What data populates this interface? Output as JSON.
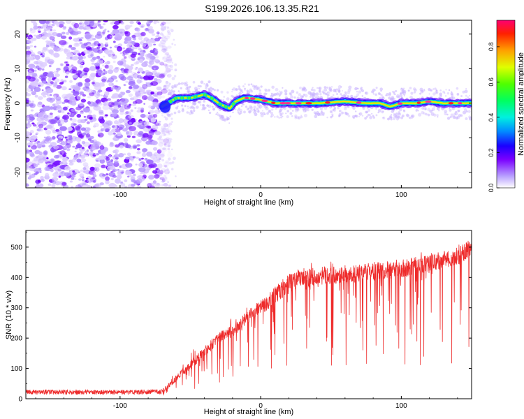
{
  "title": "S199.2026.106.13.35.R21",
  "chart_data": [
    {
      "type": "heatmap",
      "panel": "spectrogram",
      "xlabel": "Height of straight line (km)",
      "ylabel": "Frequency (Hz)",
      "xlim": [
        -167,
        150
      ],
      "ylim": [
        -24.5,
        24
      ],
      "xticks": [
        -100,
        0,
        100
      ],
      "yticks": [
        -20,
        -10,
        0,
        10,
        20
      ],
      "colorbar": {
        "label": "Normalized spectral amplitude",
        "range": [
          0,
          0.95
        ],
        "ticks": [
          0.0,
          0.2,
          0.4,
          0.6,
          0.8
        ],
        "tick_labels": [
          "0.0",
          "0.2",
          "0.4",
          "0.6",
          "0.8"
        ]
      },
      "noise_region_x": [
        -167,
        -70
      ],
      "ridge": {
        "description": "frequency of the dominant spectral ridge (Hz) vs height",
        "x": [
          -70,
          -66,
          -60,
          -50,
          -40,
          -35,
          -28,
          -22,
          -18,
          -12,
          -8,
          0,
          10,
          20,
          40,
          60,
          75,
          85,
          92,
          100,
          110,
          120,
          130,
          140,
          150
        ],
        "y": [
          -1,
          0,
          1.5,
          1.5,
          2.5,
          1.5,
          -0.5,
          -1.5,
          0.5,
          1.5,
          1.5,
          1,
          0,
          0,
          0,
          0.5,
          0,
          0,
          -1,
          0,
          0,
          0.5,
          0,
          0,
          0
        ]
      }
    },
    {
      "type": "line",
      "panel": "snr",
      "xlabel": "Height of straight line (km)",
      "ylabel": "SNR (10 * v/v)",
      "xlim": [
        -167,
        150
      ],
      "ylim": [
        0,
        555
      ],
      "xticks": [
        -100,
        0,
        100
      ],
      "yticks": [
        0,
        100,
        200,
        300,
        400,
        500
      ],
      "color": "#ee2b2b",
      "series": [
        {
          "name": "SNR",
          "x": [
            -167,
            -140,
            -100,
            -80,
            -70,
            -66,
            -60,
            -50,
            -40,
            -30,
            -20,
            -10,
            0,
            10,
            20,
            30,
            40,
            60,
            80,
            100,
            120,
            140,
            150
          ],
          "values": [
            22,
            22,
            22,
            22,
            23,
            40,
            70,
            110,
            155,
            200,
            225,
            265,
            300,
            340,
            380,
            400,
            405,
            410,
            420,
            430,
            445,
            470,
            500
          ]
        }
      ]
    }
  ]
}
